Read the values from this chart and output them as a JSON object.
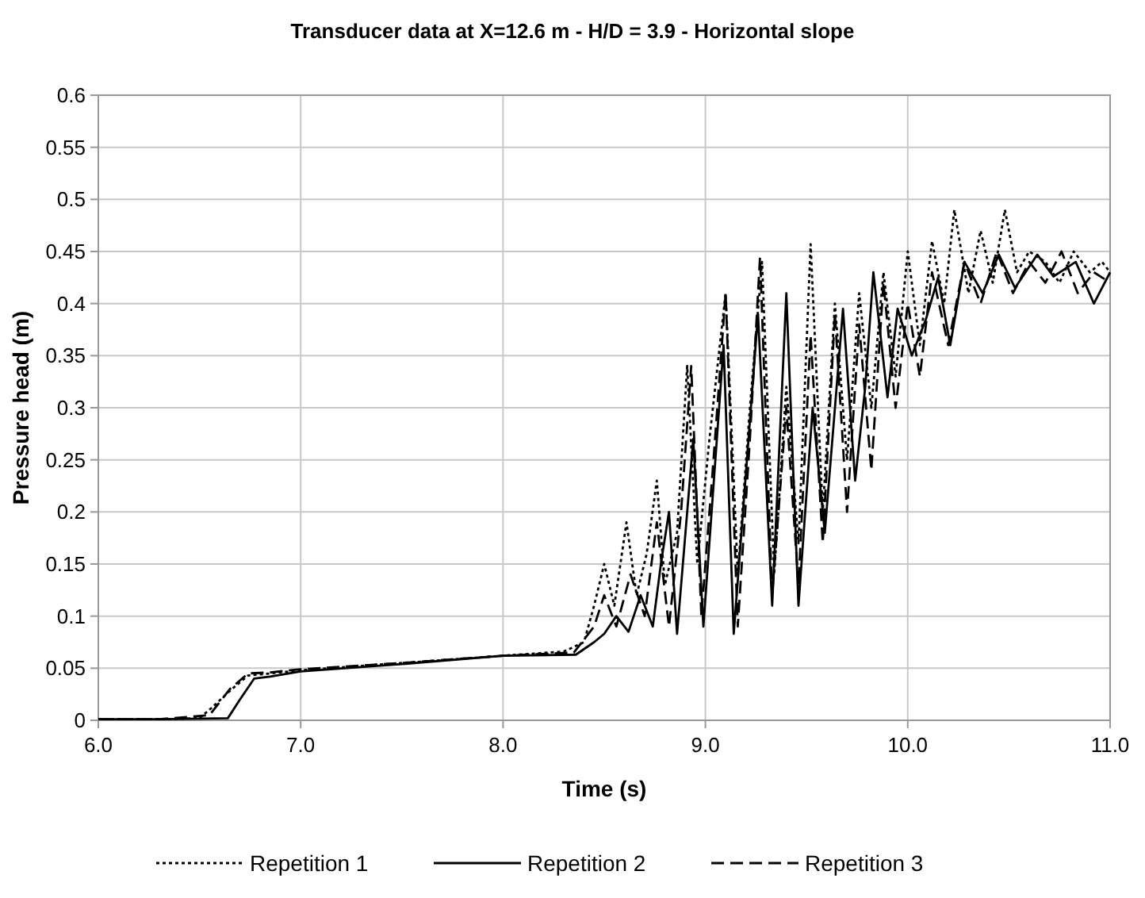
{
  "chart_data": {
    "type": "line",
    "title": "Transducer data at X=12.6 m - H/D = 3.9 - Horizontal slope",
    "xlabel": "Time (s)",
    "ylabel": "Pressure head (m)",
    "xlim": [
      6,
      11
    ],
    "xticks": [
      {
        "value": 6,
        "label": "6.0"
      },
      {
        "value": 7,
        "label": "7.0"
      },
      {
        "value": 8,
        "label": "8.0"
      },
      {
        "value": 9,
        "label": "9.0"
      },
      {
        "value": 10,
        "label": "10.0"
      },
      {
        "value": 11,
        "label": "11.0"
      }
    ],
    "ylim": [
      0,
      0.6
    ],
    "yticks": [
      0,
      0.05,
      0.1,
      0.15,
      0.2,
      0.25,
      0.3,
      0.35,
      0.4,
      0.45,
      0.5,
      0.55,
      0.6
    ],
    "grid": true,
    "legend": "bottom",
    "series": [
      {
        "name": "Repetition 1",
        "color": "#000000",
        "line_style": "dotted",
        "x": [
          6,
          6.3,
          6.5,
          6.56,
          6.66,
          6.74,
          6.85,
          7,
          7.5,
          8,
          8.3,
          8.4,
          8.45,
          8.5,
          8.55,
          8.61,
          8.66,
          8.71,
          8.76,
          8.8,
          8.86,
          8.91,
          8.96,
          9.02,
          9.1,
          9.16,
          9.22,
          9.28,
          9.34,
          9.4,
          9.46,
          9.52,
          9.58,
          9.64,
          9.7,
          9.76,
          9.82,
          9.88,
          9.94,
          10,
          10.06,
          10.12,
          10.18,
          10.23,
          10.3,
          10.36,
          10.42,
          10.48,
          10.54,
          10.6,
          10.68,
          10.75,
          10.82,
          10.9,
          10.96,
          11
        ],
        "values": [
          0.001,
          0.001,
          0.002,
          0.012,
          0.03,
          0.043,
          0.045,
          0.048,
          0.055,
          0.062,
          0.066,
          0.075,
          0.11,
          0.15,
          0.11,
          0.19,
          0.12,
          0.16,
          0.23,
          0.13,
          0.18,
          0.34,
          0.15,
          0.27,
          0.41,
          0.14,
          0.3,
          0.44,
          0.14,
          0.32,
          0.17,
          0.457,
          0.2,
          0.4,
          0.25,
          0.41,
          0.3,
          0.43,
          0.33,
          0.45,
          0.36,
          0.46,
          0.4,
          0.49,
          0.41,
          0.47,
          0.42,
          0.49,
          0.43,
          0.45,
          0.44,
          0.42,
          0.45,
          0.43,
          0.44,
          0.43
        ]
      },
      {
        "name": "Repetition 2",
        "color": "#000000",
        "line_style": "solid",
        "x": [
          6,
          6.3,
          6.64,
          6.7,
          6.77,
          6.85,
          7,
          7.5,
          8,
          8.36,
          8.45,
          8.5,
          8.56,
          8.62,
          8.68,
          8.74,
          8.78,
          8.82,
          8.86,
          8.94,
          8.99,
          9.09,
          9.14,
          9.26,
          9.33,
          9.4,
          9.46,
          9.53,
          9.59,
          9.68,
          9.74,
          9.79,
          9.83,
          9.9,
          9.95,
          10.02,
          10.09,
          10.15,
          10.21,
          10.28,
          10.37,
          10.45,
          10.53,
          10.64,
          10.72,
          10.83,
          10.92,
          11
        ],
        "values": [
          0.001,
          0.001,
          0.002,
          0.02,
          0.04,
          0.042,
          0.047,
          0.054,
          0.062,
          0.063,
          0.075,
          0.083,
          0.1,
          0.085,
          0.12,
          0.09,
          0.15,
          0.2,
          0.083,
          0.27,
          0.09,
          0.36,
          0.083,
          0.39,
          0.11,
          0.41,
          0.11,
          0.3,
          0.18,
          0.395,
          0.23,
          0.32,
          0.43,
          0.31,
          0.395,
          0.35,
          0.385,
          0.425,
          0.36,
          0.44,
          0.41,
          0.447,
          0.415,
          0.447,
          0.426,
          0.44,
          0.4,
          0.43
        ]
      },
      {
        "name": "Repetition 3",
        "color": "#000000",
        "line_style": "dashed",
        "x": [
          6,
          6.3,
          6.55,
          6.65,
          6.74,
          6.85,
          7,
          7.5,
          8,
          8.35,
          8.45,
          8.5,
          8.56,
          8.63,
          8.7,
          8.76,
          8.82,
          8.88,
          8.93,
          8.98,
          9.04,
          9.1,
          9.16,
          9.22,
          9.27,
          9.33,
          9.4,
          9.46,
          9.52,
          9.58,
          9.64,
          9.7,
          9.76,
          9.82,
          9.88,
          9.94,
          10,
          10.06,
          10.12,
          10.2,
          10.28,
          10.36,
          10.44,
          10.52,
          10.6,
          10.68,
          10.76,
          10.84,
          10.92,
          11
        ],
        "values": [
          0.001,
          0.001,
          0.005,
          0.03,
          0.045,
          0.046,
          0.049,
          0.055,
          0.062,
          0.065,
          0.09,
          0.12,
          0.09,
          0.14,
          0.1,
          0.19,
          0.09,
          0.2,
          0.34,
          0.1,
          0.25,
          0.41,
          0.09,
          0.27,
          0.445,
          0.12,
          0.3,
          0.13,
          0.37,
          0.17,
          0.39,
          0.2,
          0.38,
          0.24,
          0.42,
          0.3,
          0.4,
          0.33,
          0.43,
          0.36,
          0.44,
          0.4,
          0.45,
          0.41,
          0.44,
          0.42,
          0.45,
          0.41,
          0.43,
          0.42
        ]
      }
    ]
  }
}
